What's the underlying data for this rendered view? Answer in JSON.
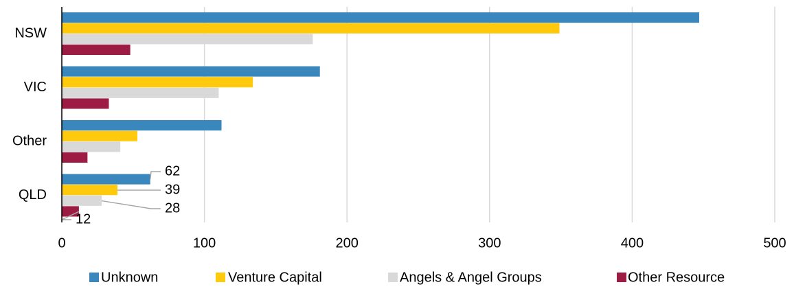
{
  "chart_data": {
    "type": "hbar",
    "categories": [
      "NSW",
      "VIC",
      "Other",
      "QLD"
    ],
    "series": [
      {
        "name": "Unknown",
        "color": "#3a87be",
        "values": [
          447,
          181,
          112,
          62
        ],
        "value_labels": [
          null,
          null,
          null,
          "62"
        ]
      },
      {
        "name": "Venture Capital",
        "color": "#ffc90e",
        "values": [
          349,
          134,
          53,
          39
        ],
        "value_labels": [
          null,
          null,
          null,
          "39"
        ]
      },
      {
        "name": "Angels & Angel Groups",
        "color": "#d9d9d9",
        "values": [
          176,
          110,
          41,
          28
        ],
        "value_labels": [
          null,
          null,
          null,
          "28"
        ]
      },
      {
        "name": "Other Resource",
        "color": "#9c1c44",
        "values": [
          48,
          33,
          18,
          12
        ],
        "value_labels": [
          null,
          null,
          null,
          "12"
        ]
      }
    ],
    "xlim": [
      0,
      500
    ],
    "xticks": [
      0,
      100,
      200,
      300,
      400,
      500
    ],
    "grid": true,
    "legend": "bottom"
  }
}
